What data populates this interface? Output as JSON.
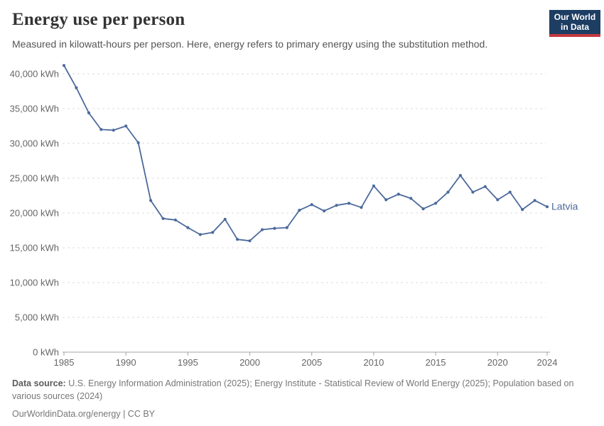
{
  "header": {
    "title": "Energy use per person",
    "subtitle": "Measured in kilowatt-hours per person. Here, energy refers to primary energy using the substitution method."
  },
  "logo": {
    "line1": "Our World",
    "line2": "in Data",
    "bg_color": "#1d3d63",
    "accent_color": "#c5383f"
  },
  "chart_data": {
    "type": "line",
    "title": "Energy use per person",
    "unit_suffix": " kWh",
    "x": [
      1985,
      1986,
      1987,
      1988,
      1989,
      1990,
      1991,
      1992,
      1993,
      1994,
      1995,
      1996,
      1997,
      1998,
      1999,
      2000,
      2001,
      2002,
      2003,
      2004,
      2005,
      2006,
      2007,
      2008,
      2009,
      2010,
      2011,
      2012,
      2013,
      2014,
      2015,
      2016,
      2017,
      2018,
      2019,
      2020,
      2021,
      2022,
      2023,
      2024
    ],
    "series": [
      {
        "name": "Latvia",
        "color": "#4C6A9C",
        "values": [
          41200,
          38000,
          34400,
          32000,
          31900,
          32500,
          30100,
          21800,
          19200,
          19000,
          17900,
          16900,
          17200,
          19100,
          16200,
          16000,
          17600,
          17800,
          17900,
          20400,
          21200,
          20300,
          21100,
          21400,
          20800,
          23900,
          21900,
          22700,
          22100,
          20600,
          21400,
          23000,
          25400,
          23000,
          23800,
          21900,
          23000,
          20500,
          21800,
          20900
        ]
      }
    ],
    "ylim": [
      0,
      40000
    ],
    "ytick_interval": 5000,
    "xticks": [
      1985,
      1990,
      1995,
      2000,
      2005,
      2010,
      2015,
      2020,
      2024
    ],
    "grid": "horizontal-dashed",
    "grid_color": "#dcdcdc",
    "axis_color": "#a5a5a5",
    "tick_label_color": "#666666",
    "legend_position": "end-of-line-label"
  },
  "footer": {
    "source_label": "Data source:",
    "source_text": " U.S. Energy Information Administration (2025); Energy Institute - Statistical Review of World Energy (2025); Population based on various sources (2024)",
    "link_text": "OurWorldinData.org/energy | CC BY"
  }
}
